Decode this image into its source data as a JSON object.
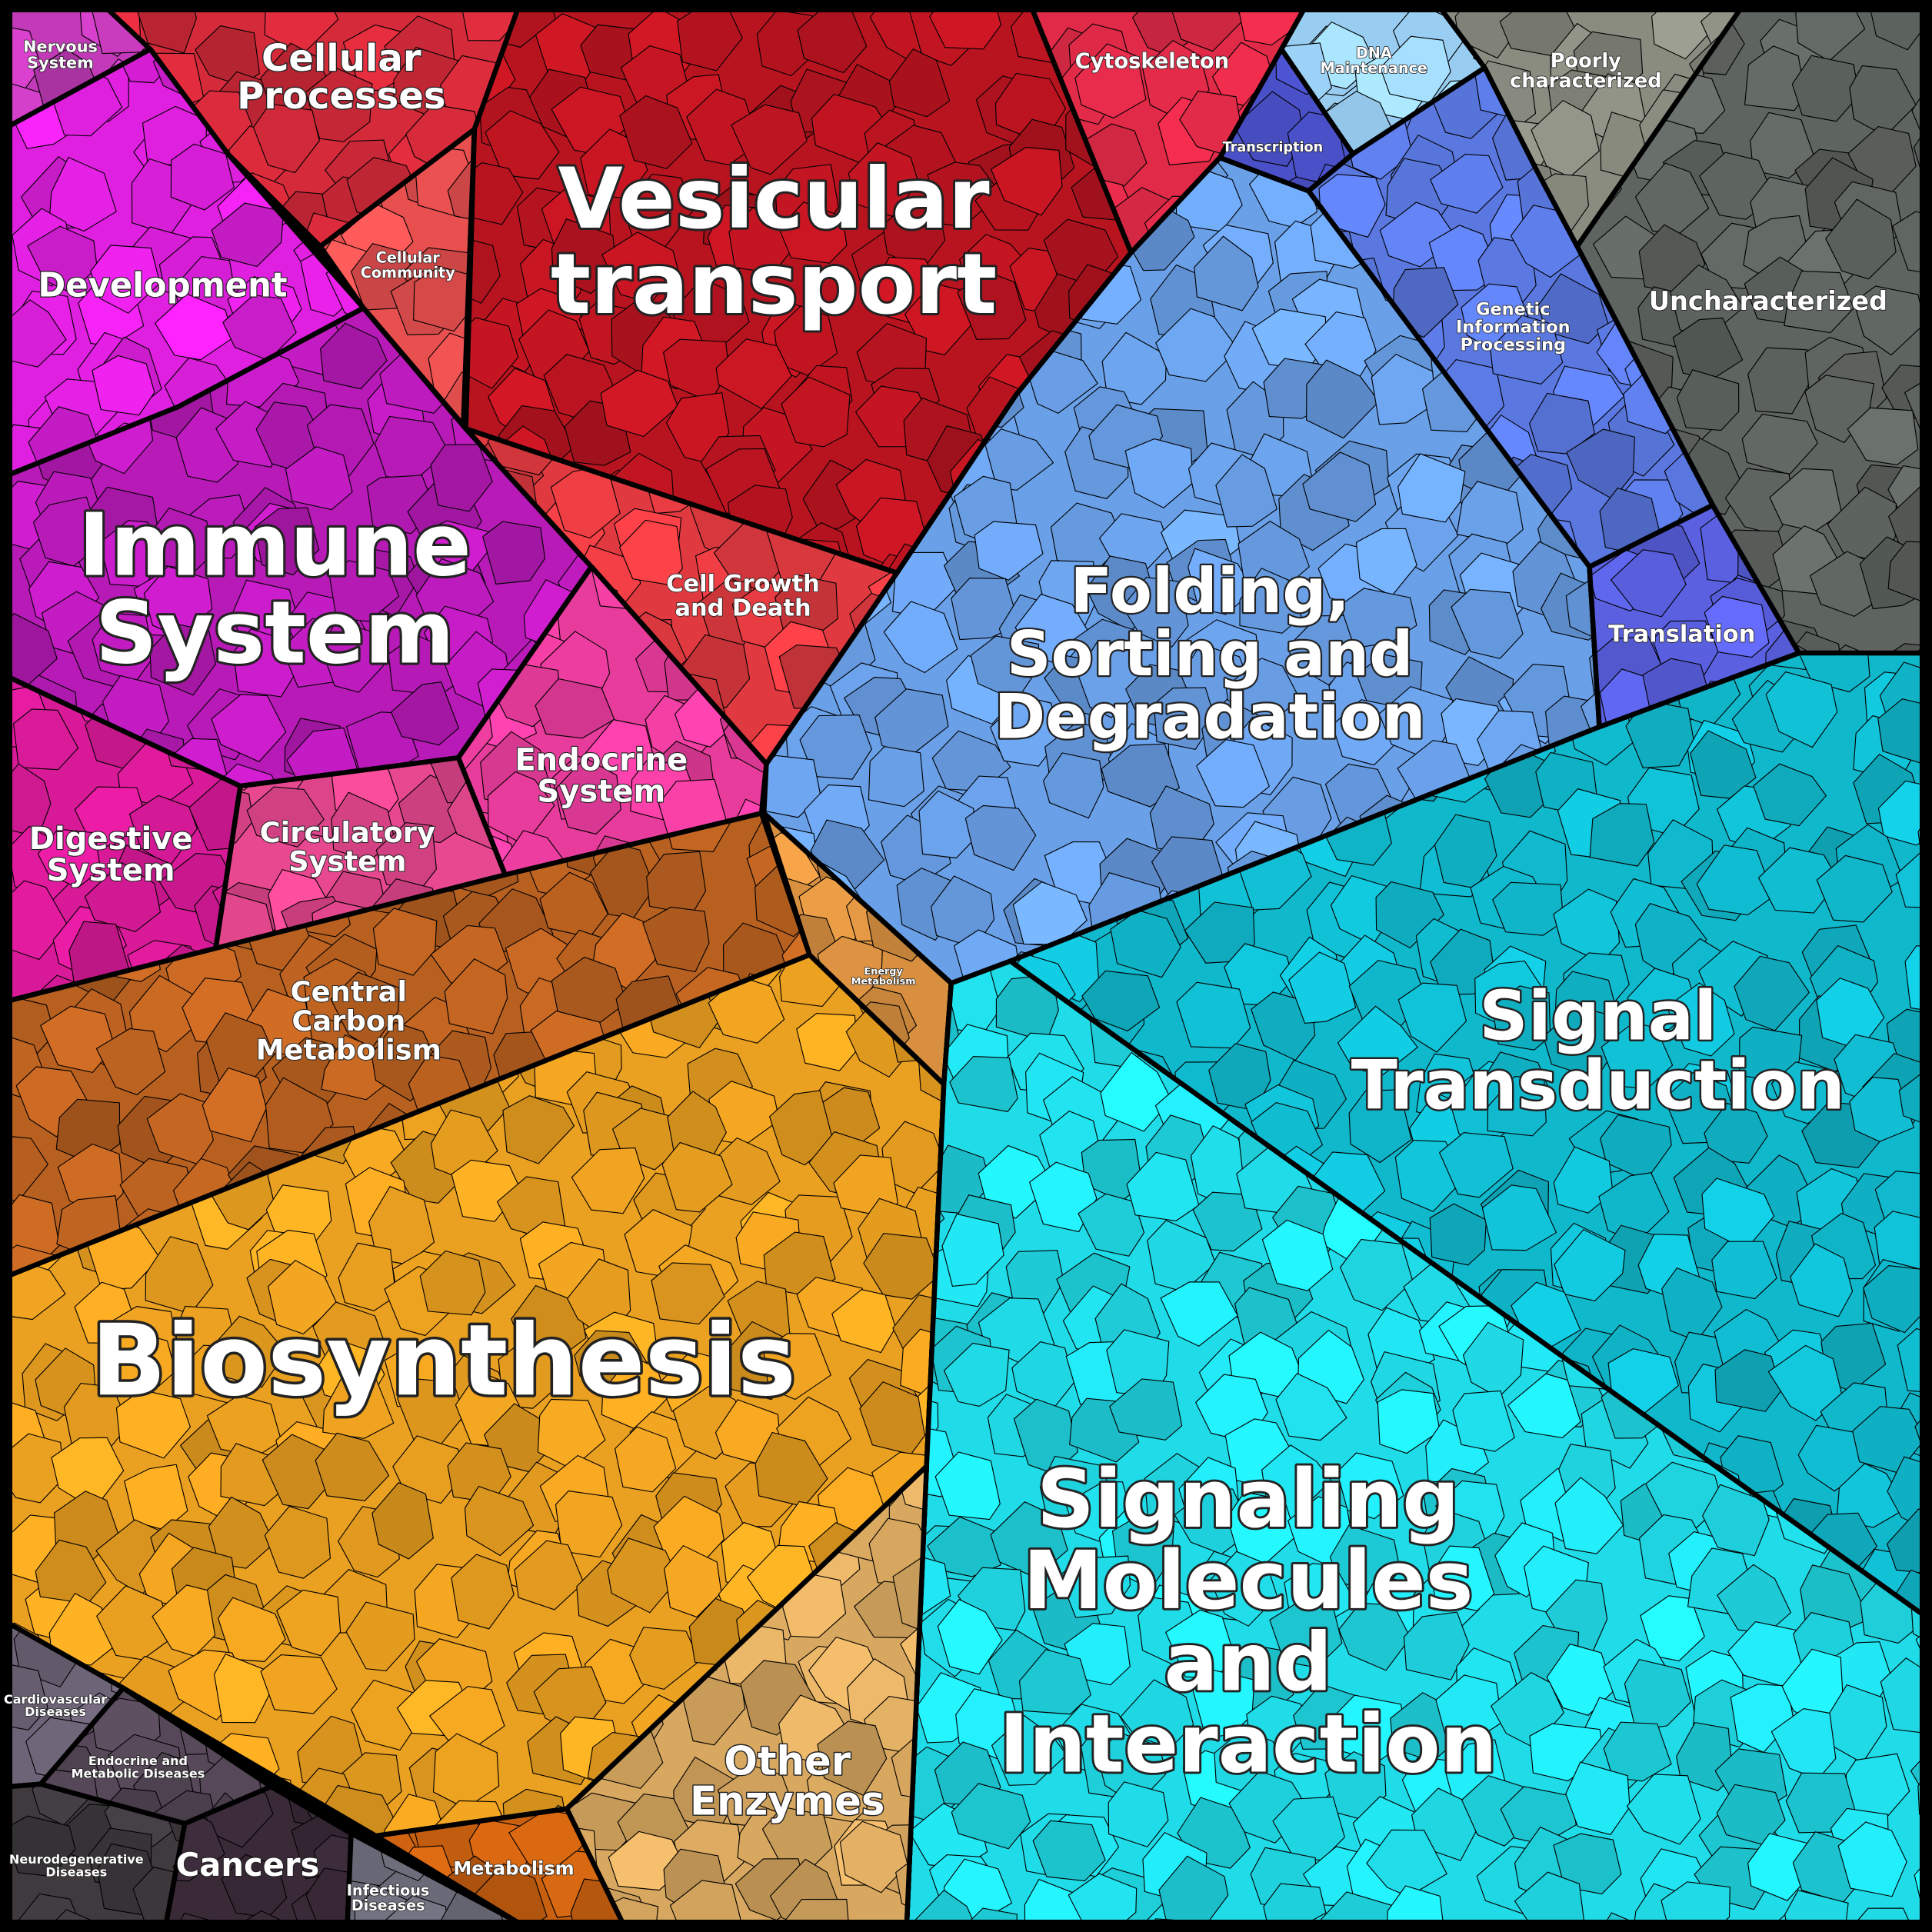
{
  "diagram": {
    "type": "voronoi-treemap",
    "regions": [
      {
        "id": "nervous",
        "lines": [
          "Nervous",
          "System"
        ],
        "color": "#c23ab8"
      },
      {
        "id": "cellular-processes",
        "lines": [
          "Cellular",
          "Processes"
        ],
        "color": "#d42a3a"
      },
      {
        "id": "vesicular",
        "lines": [
          "Vesicular",
          "transport"
        ],
        "color": "#b81420"
      },
      {
        "id": "cytoskeleton",
        "lines": [
          "Cytoskeleton"
        ],
        "color": "#e02a48"
      },
      {
        "id": "dna",
        "lines": [
          "DNA",
          "Maintenance"
        ],
        "color": "#98ccf0"
      },
      {
        "id": "poorly",
        "lines": [
          "Poorly",
          "characterized"
        ],
        "color": "#8a8c80"
      },
      {
        "id": "transcription",
        "lines": [
          "Transcription"
        ],
        "color": "#4a50c8"
      },
      {
        "id": "development",
        "lines": [
          "Development"
        ],
        "color": "#e020e0"
      },
      {
        "id": "cellular-community",
        "lines": [
          "Cellular",
          "Community"
        ],
        "color": "#e85050"
      },
      {
        "id": "uncharacterized",
        "lines": [
          "Uncharacterized"
        ],
        "color": "#5e6460"
      },
      {
        "id": "genetic",
        "lines": [
          "Genetic",
          "Information",
          "Processing"
        ],
        "color": "#5a78e0"
      },
      {
        "id": "immune",
        "lines": [
          "Immune",
          "System"
        ],
        "color": "#b81ab8"
      },
      {
        "id": "cell-growth",
        "lines": [
          "Cell Growth",
          "and Death"
        ],
        "color": "#e03a40"
      },
      {
        "id": "folding",
        "lines": [
          "Folding,",
          "Sorting and",
          "Degradation"
        ],
        "color": "#6aa0e8"
      },
      {
        "id": "translation",
        "lines": [
          "Translation"
        ],
        "color": "#5a60e0"
      },
      {
        "id": "endocrine",
        "lines": [
          "Endocrine",
          "System"
        ],
        "color": "#e83c9c"
      },
      {
        "id": "circulatory",
        "lines": [
          "Circulatory",
          "System"
        ],
        "color": "#e84890"
      },
      {
        "id": "digestive",
        "lines": [
          "Digestive",
          "System"
        ],
        "color": "#d81a98"
      },
      {
        "id": "signal-transduction",
        "lines": [
          "Signal",
          "Transduction"
        ],
        "color": "#10b8cc"
      },
      {
        "id": "energy",
        "lines": [
          "Energy",
          "Metabolism"
        ],
        "color": "#d89040"
      },
      {
        "id": "central-carbon",
        "lines": [
          "Central",
          "Carbon",
          "Metabolism"
        ],
        "color": "#b86020"
      },
      {
        "id": "biosynthesis",
        "lines": [
          "Biosynthesis"
        ],
        "color": "#eaa020"
      },
      {
        "id": "signaling-molecules",
        "lines": [
          "Signaling",
          "Molecules",
          "and",
          "Interaction"
        ],
        "color": "#20dce8"
      },
      {
        "id": "other-enzymes",
        "lines": [
          "Other",
          "Enzymes"
        ],
        "color": "#d8a860"
      },
      {
        "id": "metabolism",
        "lines": [
          "Metabolism"
        ],
        "color": "#c86010"
      },
      {
        "id": "cardiovascular",
        "lines": [
          "Cardiovascular",
          "Diseases"
        ],
        "color": "#6e6478"
      },
      {
        "id": "endocrine-metabolic",
        "lines": [
          "Endocrine and",
          "Metabolic Diseases"
        ],
        "color": "#564858"
      },
      {
        "id": "neurodegenerative",
        "lines": [
          "Neurodegenerative",
          "Diseases"
        ],
        "color": "#3e3a3e"
      },
      {
        "id": "cancers",
        "lines": [
          "Cancers"
        ],
        "color": "#3a2a38"
      },
      {
        "id": "infectious",
        "lines": [
          "Infectious",
          "Diseases"
        ],
        "color": "#6a6a78"
      }
    ]
  }
}
